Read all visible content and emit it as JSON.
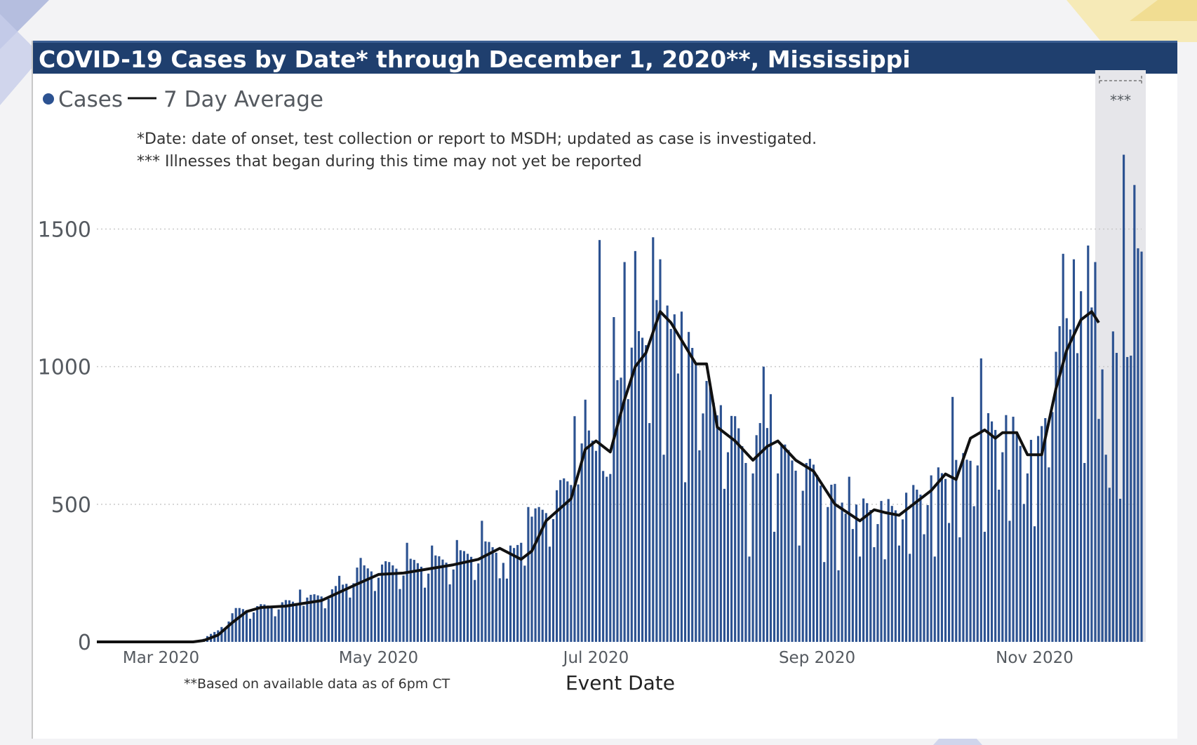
{
  "title": "COVID-19 Cases by Date* through December 1, 2020**, Mississippi",
  "legend": {
    "cases_label": "Cases",
    "avg_label": "7 Day Average"
  },
  "notes": [
    "*Date: date of onset, test collection or report to MSDH; updated as case is investigated.",
    "*** Illnesses that began during this time may not yet be reported"
  ],
  "footnote": "**Based on available data as of 6pm CT",
  "reporting_lag_marker": "***",
  "colors": {
    "title_bg": "#1f3f6e",
    "bar": "#2c5291",
    "avg_line": "#111111",
    "lag_band": "#e6e6ea"
  },
  "chart_data": {
    "type": "bar",
    "title": "COVID-19 Cases by Date* through December 1, 2020**, Mississippi",
    "xlabel": "Event Date",
    "ylabel": "",
    "ylim": [
      0,
      1700
    ],
    "yticks": [
      0,
      500,
      1000,
      1500
    ],
    "xlim": [
      "2020-02-12",
      "2020-12-01"
    ],
    "xticks": [
      {
        "date": "2020-03-01",
        "label": "Mar 2020"
      },
      {
        "date": "2020-05-01",
        "label": "May 2020"
      },
      {
        "date": "2020-07-01",
        "label": "Jul 2020"
      },
      {
        "date": "2020-09-01",
        "label": "Sep 2020"
      },
      {
        "date": "2020-11-01",
        "label": "Nov 2020"
      }
    ],
    "grid": "horizontal dotted",
    "legend_position": "top-left",
    "lag_period": [
      "2020-11-18",
      "2020-12-01"
    ],
    "series": [
      {
        "name": "Cases",
        "type": "bar",
        "anchors": [
          [
            "2020-02-12",
            0
          ],
          [
            "2020-03-10",
            0
          ],
          [
            "2020-03-13",
            12
          ],
          [
            "2020-03-17",
            40
          ],
          [
            "2020-03-22",
            110
          ],
          [
            "2020-03-28",
            120
          ],
          [
            "2020-04-10",
            145
          ],
          [
            "2020-04-20",
            185
          ],
          [
            "2020-04-25",
            250
          ],
          [
            "2020-05-05",
            265
          ],
          [
            "2020-05-15",
            275
          ],
          [
            "2020-05-25",
            300
          ],
          [
            "2020-06-01",
            330
          ],
          [
            "2020-06-08",
            310
          ],
          [
            "2020-06-12",
            410
          ],
          [
            "2020-06-18",
            480
          ],
          [
            "2020-06-24",
            570
          ],
          [
            "2020-06-28",
            700
          ],
          [
            "2020-07-03",
            690
          ],
          [
            "2020-07-08",
            960
          ],
          [
            "2020-07-12",
            1000
          ],
          [
            "2020-07-17",
            1130
          ],
          [
            "2020-07-20",
            1190
          ],
          [
            "2020-07-26",
            1030
          ],
          [
            "2020-07-29",
            1010
          ],
          [
            "2020-08-03",
            790
          ],
          [
            "2020-08-08",
            760
          ],
          [
            "2020-08-12",
            650
          ],
          [
            "2020-08-18",
            740
          ],
          [
            "2020-08-23",
            640
          ],
          [
            "2020-08-28",
            610
          ],
          [
            "2020-09-03",
            560
          ],
          [
            "2020-09-10",
            450
          ],
          [
            "2020-09-15",
            480
          ],
          [
            "2020-09-22",
            470
          ],
          [
            "2020-09-27",
            510
          ],
          [
            "2020-10-03",
            560
          ],
          [
            "2020-10-08",
            600
          ],
          [
            "2020-10-13",
            630
          ],
          [
            "2020-10-17",
            740
          ],
          [
            "2020-10-21",
            770
          ],
          [
            "2020-10-25",
            760
          ],
          [
            "2020-10-30",
            680
          ],
          [
            "2020-11-02",
            680
          ],
          [
            "2020-11-05",
            880
          ],
          [
            "2020-11-10",
            1120
          ],
          [
            "2020-11-14",
            1180
          ],
          [
            "2020-11-18",
            1150
          ],
          [
            "2020-11-24",
            1000
          ],
          [
            "2020-12-01",
            1350
          ]
        ],
        "peaks": [
          [
            "2020-04-09",
            190
          ],
          [
            "2020-04-20",
            240
          ],
          [
            "2020-04-26",
            305
          ],
          [
            "2020-05-09",
            360
          ],
          [
            "2020-05-16",
            350
          ],
          [
            "2020-05-23",
            370
          ],
          [
            "2020-05-30",
            440
          ],
          [
            "2020-06-12",
            490
          ],
          [
            "2020-06-25",
            820
          ],
          [
            "2020-06-28",
            880
          ],
          [
            "2020-07-02",
            1460
          ],
          [
            "2020-07-06",
            1180
          ],
          [
            "2020-07-09",
            1380
          ],
          [
            "2020-07-12",
            1420
          ],
          [
            "2020-07-17",
            1470
          ],
          [
            "2020-07-19",
            1390
          ],
          [
            "2020-07-23",
            1190
          ],
          [
            "2020-07-25",
            1200
          ],
          [
            "2020-08-05",
            860
          ],
          [
            "2020-08-17",
            1000
          ],
          [
            "2020-08-19",
            900
          ],
          [
            "2020-09-10",
            600
          ],
          [
            "2020-10-09",
            890
          ],
          [
            "2020-10-17",
            1030
          ],
          [
            "2020-11-09",
            1410
          ],
          [
            "2020-11-12",
            1390
          ],
          [
            "2020-11-16",
            1440
          ],
          [
            "2020-11-18",
            1380
          ],
          [
            "2020-11-26",
            1770
          ],
          [
            "2020-11-29",
            1660
          ]
        ],
        "troughs": [
          [
            "2020-06-06",
            230
          ],
          [
            "2020-07-04",
            600
          ],
          [
            "2020-07-05",
            610
          ],
          [
            "2020-07-20",
            680
          ],
          [
            "2020-07-26",
            580
          ],
          [
            "2020-08-13",
            310
          ],
          [
            "2020-08-20",
            400
          ],
          [
            "2020-08-27",
            350
          ],
          [
            "2020-09-03",
            290
          ],
          [
            "2020-09-07",
            260
          ],
          [
            "2020-09-13",
            310
          ],
          [
            "2020-09-20",
            300
          ],
          [
            "2020-09-27",
            320
          ],
          [
            "2020-10-04",
            310
          ],
          [
            "2020-10-11",
            380
          ],
          [
            "2020-10-18",
            400
          ],
          [
            "2020-10-25",
            440
          ],
          [
            "2020-11-01",
            420
          ],
          [
            "2020-11-15",
            650
          ],
          [
            "2020-11-21",
            680
          ],
          [
            "2020-11-22",
            560
          ],
          [
            "2020-11-25",
            520
          ],
          [
            "2020-11-28",
            1040
          ]
        ],
        "weekly_pattern": [
          1.0,
          0.72,
          0.9,
          1.08,
          1.12,
          1.1,
          1.05
        ]
      },
      {
        "name": "7 Day Average",
        "type": "line",
        "points": [
          [
            "2020-02-12",
            0
          ],
          [
            "2020-03-10",
            0
          ],
          [
            "2020-03-13",
            5
          ],
          [
            "2020-03-17",
            25
          ],
          [
            "2020-03-21",
            70
          ],
          [
            "2020-03-25",
            110
          ],
          [
            "2020-03-29",
            125
          ],
          [
            "2020-04-05",
            130
          ],
          [
            "2020-04-15",
            150
          ],
          [
            "2020-04-25",
            210
          ],
          [
            "2020-05-01",
            245
          ],
          [
            "2020-05-08",
            250
          ],
          [
            "2020-05-15",
            265
          ],
          [
            "2020-05-22",
            280
          ],
          [
            "2020-05-29",
            300
          ],
          [
            "2020-06-04",
            340
          ],
          [
            "2020-06-10",
            300
          ],
          [
            "2020-06-13",
            330
          ],
          [
            "2020-06-17",
            440
          ],
          [
            "2020-06-24",
            520
          ],
          [
            "2020-06-28",
            700
          ],
          [
            "2020-07-01",
            730
          ],
          [
            "2020-07-05",
            690
          ],
          [
            "2020-07-09",
            880
          ],
          [
            "2020-07-12",
            1000
          ],
          [
            "2020-07-15",
            1050
          ],
          [
            "2020-07-19",
            1200
          ],
          [
            "2020-07-22",
            1160
          ],
          [
            "2020-07-29",
            1010
          ],
          [
            "2020-08-01",
            1010
          ],
          [
            "2020-08-04",
            780
          ],
          [
            "2020-08-09",
            730
          ],
          [
            "2020-08-14",
            660
          ],
          [
            "2020-08-18",
            710
          ],
          [
            "2020-08-21",
            730
          ],
          [
            "2020-08-26",
            660
          ],
          [
            "2020-08-31",
            620
          ],
          [
            "2020-09-06",
            500
          ],
          [
            "2020-09-13",
            440
          ],
          [
            "2020-09-17",
            480
          ],
          [
            "2020-09-20",
            470
          ],
          [
            "2020-09-24",
            460
          ],
          [
            "2020-09-28",
            500
          ],
          [
            "2020-10-03",
            550
          ],
          [
            "2020-10-07",
            610
          ],
          [
            "2020-10-10",
            590
          ],
          [
            "2020-10-14",
            740
          ],
          [
            "2020-10-18",
            770
          ],
          [
            "2020-10-21",
            740
          ],
          [
            "2020-10-23",
            760
          ],
          [
            "2020-10-27",
            760
          ],
          [
            "2020-10-30",
            680
          ],
          [
            "2020-11-03",
            680
          ],
          [
            "2020-11-07",
            920
          ],
          [
            "2020-11-10",
            1060
          ],
          [
            "2020-11-14",
            1170
          ],
          [
            "2020-11-17",
            1200
          ],
          [
            "2020-11-19",
            1160
          ]
        ]
      }
    ]
  }
}
